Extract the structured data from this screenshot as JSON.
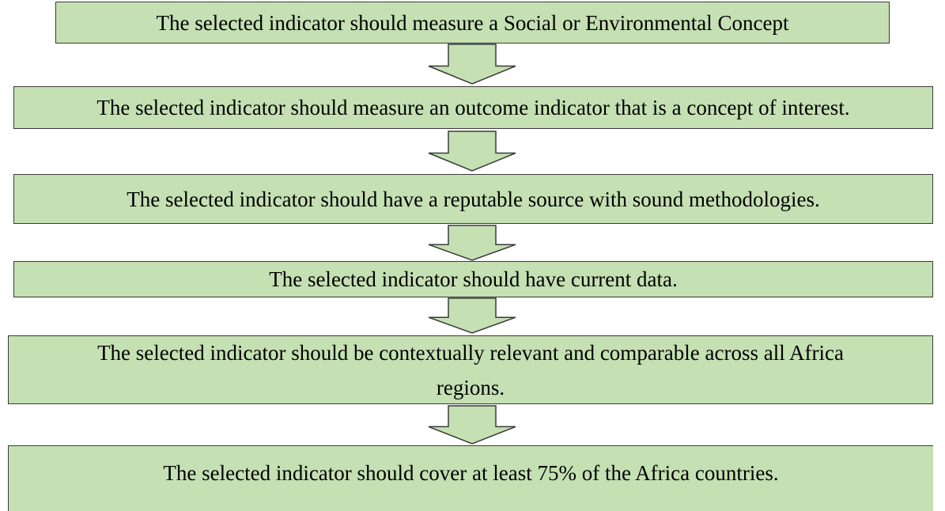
{
  "steps": [
    {
      "lines": [
        "The selected indicator should measure a Social or Environmental Concept"
      ]
    },
    {
      "lines": [
        "The selected indicator should measure an outcome indicator that is a concept of interest."
      ]
    },
    {
      "lines": [
        "The selected indicator should have a reputable source with sound methodologies."
      ]
    },
    {
      "lines": [
        "The selected indicator should have current data."
      ]
    },
    {
      "lines": [
        "The selected indicator should be contextually relevant and comparable across all Africa",
        "regions."
      ]
    },
    {
      "lines": [
        "The selected indicator should cover at least 75% of the Africa countries."
      ]
    }
  ]
}
